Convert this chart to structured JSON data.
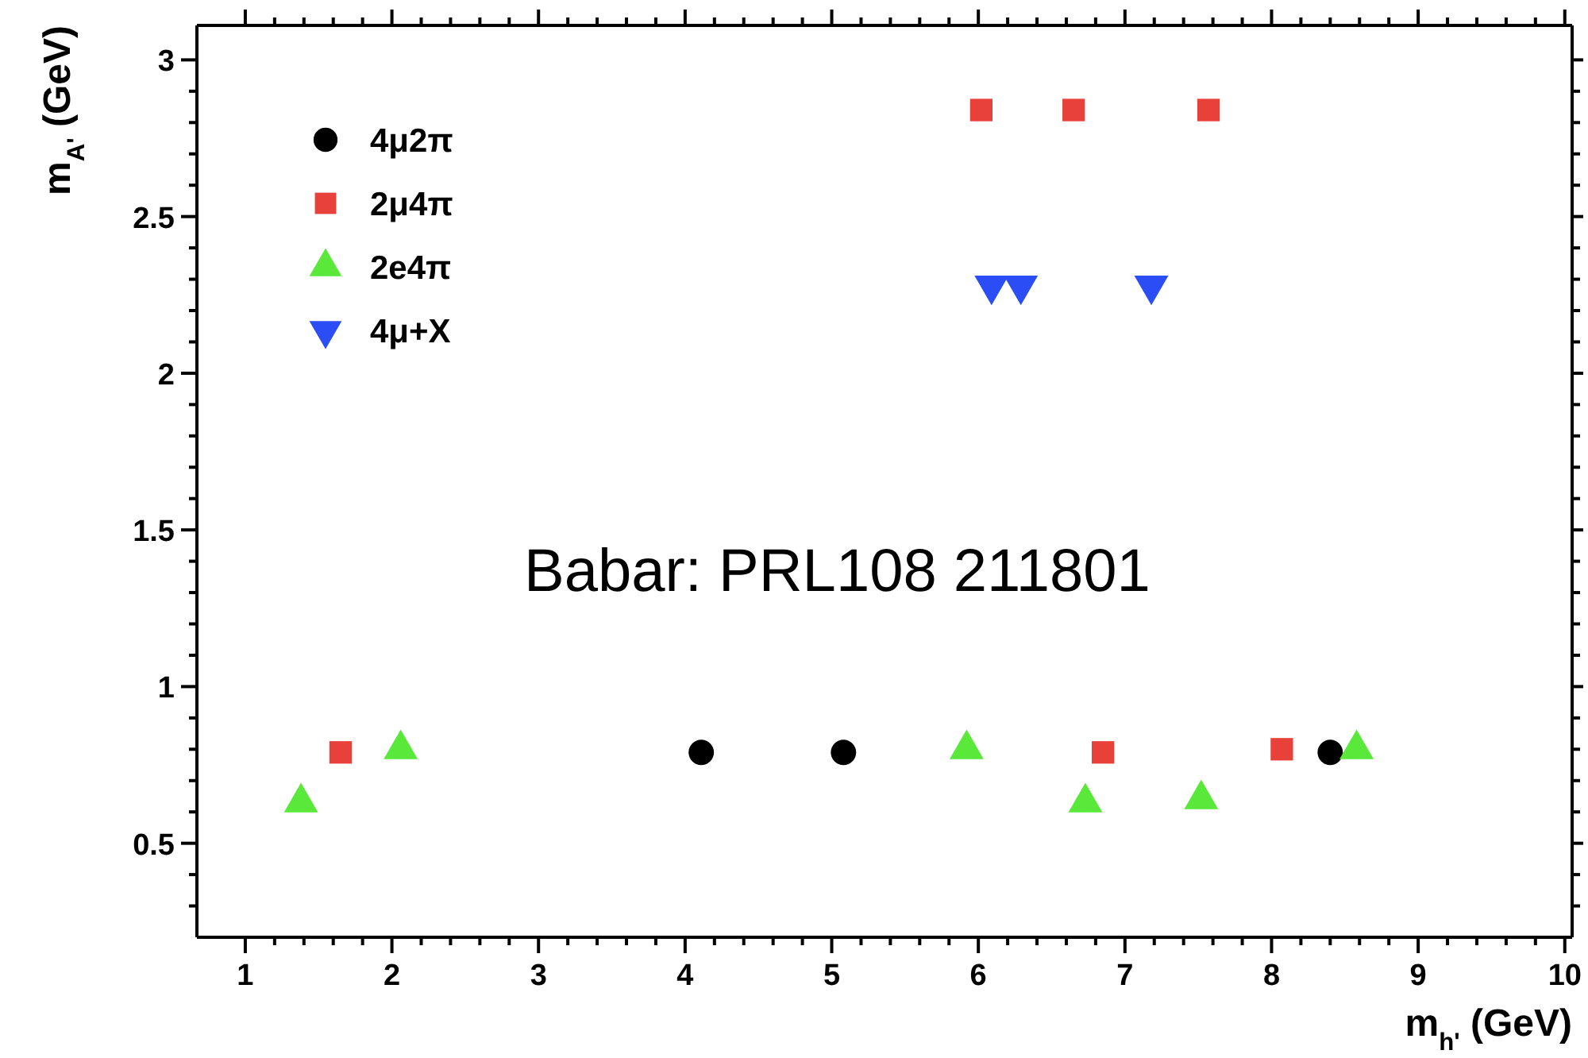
{
  "chart_data": {
    "type": "scatter",
    "xlabel": "m$_{h'}$ (GeV)",
    "ylabel": "m$_{A'}$ (GeV)",
    "xlim": [
      0.67,
      10.05
    ],
    "ylim": [
      0.2,
      3.11
    ],
    "xticks": [
      1,
      {
        "value": 1.2,
        "label": null
      },
      {
        "value": 1.4,
        "label": null
      },
      {
        "value": 1.6,
        "label": null
      },
      {
        "value": 1.8,
        "label": null
      },
      2,
      {
        "value": 2.2,
        "label": null
      },
      {
        "value": 2.4,
        "label": null
      },
      {
        "value": 2.6,
        "label": null
      },
      {
        "value": 2.8,
        "label": null
      },
      3,
      {
        "value": 3.2,
        "label": null
      },
      {
        "value": 3.4,
        "label": null
      },
      {
        "value": 3.6,
        "label": null
      },
      {
        "value": 3.8,
        "label": null
      },
      4,
      {
        "value": 4.2,
        "label": null
      },
      {
        "value": 4.4,
        "label": null
      },
      {
        "value": 4.6,
        "label": null
      },
      {
        "value": 4.8,
        "label": null
      },
      5,
      {
        "value": 5.2,
        "label": null
      },
      {
        "value": 5.4,
        "label": null
      },
      {
        "value": 5.6,
        "label": null
      },
      {
        "value": 5.8,
        "label": null
      },
      6,
      {
        "value": 6.2,
        "label": null
      },
      {
        "value": 6.4,
        "label": null
      },
      {
        "value": 6.6,
        "label": null
      },
      {
        "value": 6.8,
        "label": null
      },
      7,
      {
        "value": 7.2,
        "label": null
      },
      {
        "value": 7.4,
        "label": null
      },
      {
        "value": 7.6,
        "label": null
      },
      {
        "value": 7.8,
        "label": null
      },
      8,
      {
        "value": 8.2,
        "label": null
      },
      {
        "value": 8.4,
        "label": null
      },
      {
        "value": 8.6,
        "label": null
      },
      {
        "value": 8.8,
        "label": null
      },
      9,
      {
        "value": 9.2,
        "label": null
      },
      {
        "value": 9.4,
        "label": null
      },
      {
        "value": 9.6,
        "label": null
      },
      {
        "value": 9.8,
        "label": null
      },
      10
    ],
    "yticks": [
      {
        "value": 0.3,
        "label": null
      },
      {
        "value": 0.4,
        "label": null
      },
      0.5,
      {
        "value": 0.6,
        "label": null
      },
      {
        "value": 0.7,
        "label": null
      },
      {
        "value": 0.8,
        "label": null
      },
      {
        "value": 0.9,
        "label": null
      },
      1,
      {
        "value": 1.1,
        "label": null
      },
      {
        "value": 1.2,
        "label": null
      },
      {
        "value": 1.3,
        "label": null
      },
      {
        "value": 1.4,
        "label": null
      },
      1.5,
      {
        "value": 1.6,
        "label": null
      },
      {
        "value": 1.7,
        "label": null
      },
      {
        "value": 1.8,
        "label": null
      },
      {
        "value": 1.9,
        "label": null
      },
      2,
      {
        "value": 2.1,
        "label": null
      },
      {
        "value": 2.2,
        "label": null
      },
      {
        "value": 2.3,
        "label": null
      },
      {
        "value": 2.4,
        "label": null
      },
      2.5,
      {
        "value": 2.6,
        "label": null
      },
      {
        "value": 2.7,
        "label": null
      },
      {
        "value": 2.8,
        "label": null
      },
      {
        "value": 2.9,
        "label": null
      },
      3
    ],
    "legend": "top left",
    "grid": false,
    "series": [
      {
        "name": "4μ2π",
        "color": "#000000",
        "marker": "circle",
        "x": [
          4.11,
          5.08,
          8.4
        ],
        "values": [
          0.79,
          0.79,
          0.79
        ]
      },
      {
        "name": "2μ4π",
        "color": "#e8413a",
        "marker": "square",
        "x": [
          1.65,
          6.85,
          8.07,
          6.02,
          6.65,
          7.57
        ],
        "values": [
          0.79,
          0.79,
          0.8,
          2.84,
          2.84,
          2.84
        ]
      },
      {
        "name": "2e4π",
        "color": "#5ae83a",
        "marker": "triangle",
        "x": [
          1.38,
          2.06,
          5.92,
          6.73,
          7.52,
          8.58
        ],
        "values": [
          0.63,
          0.8,
          0.8,
          0.63,
          0.64,
          0.8
        ]
      },
      {
        "name": "4μ+X",
        "color": "#2a4df5",
        "marker": "triangle-down",
        "x": [
          6.09,
          6.29,
          7.18
        ],
        "values": [
          2.28,
          2.28,
          2.28
        ]
      }
    ],
    "annotations": [
      "Babar: PRL108 211801"
    ]
  }
}
